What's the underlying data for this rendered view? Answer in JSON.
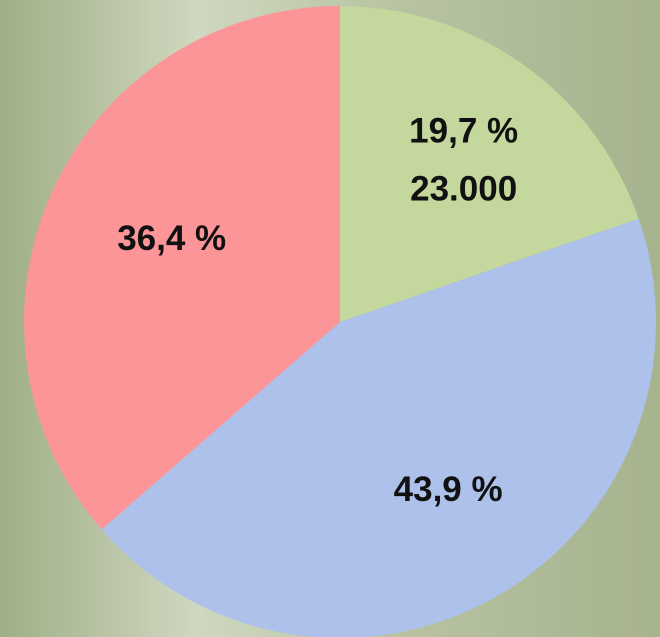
{
  "chart_data": {
    "type": "pie",
    "categories": [
      null,
      null,
      null
    ],
    "values": [
      19.7,
      43.9,
      36.4
    ],
    "value_labels": [
      "19,7 %",
      "43,9 %",
      "36,4 %"
    ],
    "colors": [
      "#c4d79c",
      "#adc1ea",
      "#fb9597"
    ],
    "annotation": "23.000",
    "start_angle": 0,
    "direction": "clockwise"
  }
}
